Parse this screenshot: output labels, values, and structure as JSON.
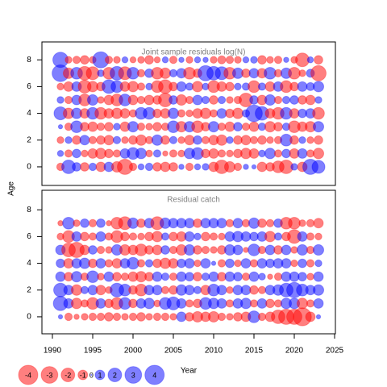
{
  "chart_data": [
    {
      "type": "bubble",
      "title": "Joint sample residuals log(N)",
      "ylabel": "Age",
      "x": [
        1991,
        1992,
        1993,
        1994,
        1995,
        1996,
        1997,
        1998,
        1999,
        2000,
        2001,
        2002,
        2003,
        2004,
        2005,
        2006,
        2007,
        2008,
        2009,
        2010,
        2011,
        2012,
        2013,
        2014,
        2015,
        2016,
        2017,
        2018,
        2019,
        2020,
        2021,
        2022,
        2023
      ],
      "ages": [
        0,
        1,
        2,
        3,
        4,
        5,
        6,
        7,
        8
      ],
      "values": [
        [
          -0.6,
          2.0,
          0.8,
          -0.8,
          0.6,
          -1.0,
          1.0,
          -1.2,
          -2.5,
          -0.6,
          0.4,
          0.6,
          -0.8,
          -1.0,
          -0.8,
          0.3,
          -0.6,
          0.4,
          0.5,
          -1.0,
          -2.0,
          -1.2,
          -0.6,
          0.3,
          0.2,
          -1.0,
          -0.8,
          -1.5,
          -2.0,
          0.5,
          -1.0,
          2.5,
          1.8
        ],
        [
          0.4,
          -0.6,
          0.8,
          -0.5,
          -1.0,
          -1.2,
          -0.8,
          -0.6,
          1.0,
          1.5,
          1.2,
          -0.5,
          0.6,
          -0.3,
          -0.6,
          -0.5,
          1.2,
          1.5,
          -0.8,
          -1.0,
          -0.6,
          -0.5,
          -0.8,
          -1.2,
          -1.0,
          0.5,
          1.2,
          -0.6,
          0.8,
          -1.0,
          1.0,
          -0.6,
          -1.2
        ],
        [
          -0.5,
          0.5,
          -0.8,
          1.0,
          -0.6,
          -0.8,
          -1.0,
          0.6,
          -0.5,
          -0.8,
          -1.2,
          -0.6,
          1.2,
          -0.8,
          0.6,
          -0.5,
          -1.0,
          0.8,
          -0.6,
          -1.0,
          -1.2,
          0.5,
          -0.8,
          -1.0,
          -0.6,
          -0.8,
          -0.5,
          -0.6,
          1.5,
          -0.8,
          0.5,
          -0.5,
          -0.8
        ],
        [
          0.2,
          -0.6,
          1.5,
          -0.8,
          -1.0,
          -0.6,
          -0.8,
          0.5,
          -1.0,
          1.2,
          -0.6,
          -0.5,
          -0.8,
          -0.6,
          1.5,
          -1.2,
          1.2,
          -1.5,
          -0.8,
          1.2,
          -0.6,
          -1.0,
          0.8,
          -0.6,
          -1.0,
          0.6,
          -1.2,
          -0.8,
          0.6,
          -1.5,
          -1.0,
          -1.2,
          1.2
        ],
        [
          1.8,
          -1.2,
          1.2,
          -1.0,
          1.5,
          -1.5,
          -1.0,
          -1.2,
          -1.0,
          -0.6,
          1.5,
          1.5,
          -0.8,
          -1.0,
          1.2,
          -0.6,
          -0.5,
          -1.0,
          -1.2,
          -0.6,
          1.0,
          -0.8,
          -1.2,
          0.6,
          3.0,
          2.0,
          -1.0,
          -1.5,
          1.5,
          -1.0,
          0.8,
          1.0,
          -1.5
        ],
        [
          0.5,
          -0.6,
          1.0,
          -1.5,
          1.2,
          -0.5,
          -1.0,
          -1.5,
          1.5,
          -1.0,
          -0.6,
          -1.0,
          -0.8,
          -2.0,
          0.8,
          -1.2,
          -0.6,
          1.0,
          0.6,
          -0.8,
          0.6,
          -0.5,
          -0.6,
          -2.0,
          0.8,
          -1.0,
          1.2,
          -0.6,
          0.6,
          0.8,
          -0.8,
          -1.0,
          0.5
        ],
        [
          -0.5,
          -1.0,
          1.0,
          -1.8,
          -1.2,
          -0.8,
          2.0,
          1.5,
          -1.0,
          -1.2,
          -0.6,
          0.5,
          -1.5,
          -2.0,
          -0.8,
          1.0,
          0.6,
          -1.2,
          0.5,
          -1.5,
          -1.0,
          -0.8,
          0.5,
          0.6,
          -1.5,
          0.6,
          -1.0,
          1.0,
          -1.5,
          -0.8,
          1.0,
          0.7,
          1.2
        ],
        [
          3.0,
          -1.2,
          1.5,
          -2.0,
          -1.8,
          0.5,
          -1.5,
          2.0,
          -1.8,
          1.5,
          -0.6,
          0.8,
          -1.5,
          -1.2,
          0.6,
          1.0,
          -1.5,
          -0.8,
          2.5,
          2.0,
          1.8,
          -1.5,
          1.2,
          -0.8,
          1.0,
          -1.0,
          1.5,
          -0.6,
          1.2,
          -1.5,
          -0.5,
          0.7,
          -2.5
        ],
        [
          2.5,
          -0.5,
          -0.6,
          -0.8,
          -0.5,
          2.8,
          -0.6,
          -0.5,
          0.4,
          -0.4,
          -0.5,
          -0.8,
          -0.4,
          0.4,
          -0.6,
          0.3,
          -0.5,
          0.4,
          0.3,
          -0.5,
          -0.7,
          -0.6,
          -0.5,
          0.4,
          0.5,
          -0.8,
          -0.5,
          -0.6,
          0.3,
          -0.5,
          -2.0,
          0.4,
          -0.8
        ]
      ],
      "xlim": [
        1988.7,
        2025.1
      ],
      "ylim": [
        -1.39,
        9.34
      ],
      "yticks": [
        0,
        2,
        4,
        6,
        8
      ]
    },
    {
      "type": "bubble",
      "title": "Residual catch",
      "xlabel": "Year",
      "x": [
        1991,
        1992,
        1993,
        1994,
        1995,
        1996,
        1997,
        1998,
        1999,
        2000,
        2001,
        2002,
        2003,
        2004,
        2005,
        2006,
        2007,
        2008,
        2009,
        2010,
        2011,
        2012,
        2013,
        2014,
        2015,
        2016,
        2017,
        2018,
        2019,
        2020,
        2021,
        2022,
        2023
      ],
      "ages": [
        0,
        1,
        2,
        3,
        4,
        5,
        6,
        7
      ],
      "values": [
        [
          0.2,
          -0.6,
          -0.3,
          -0.5,
          -0.6,
          -0.6,
          -0.8,
          -0.6,
          -0.5,
          -0.6,
          -0.8,
          -0.5,
          -0.6,
          -0.6,
          -0.5,
          1.0,
          -0.8,
          -1.2,
          -1.0,
          -1.2,
          -0.6,
          -0.5,
          -0.8,
          -1.0,
          1.5,
          -0.6,
          -1.0,
          -2.0,
          -2.5,
          -2.5,
          -3.5,
          -1.0,
          0.2
        ],
        [
          2.2,
          1.0,
          -1.2,
          -0.6,
          -1.5,
          1.0,
          -0.8,
          -1.5,
          1.5,
          -0.8,
          1.0,
          1.2,
          -0.5,
          1.5,
          1.8,
          1.0,
          -0.6,
          -0.8,
          1.5,
          1.2,
          1.0,
          -0.6,
          1.0,
          1.2,
          -0.6,
          1.0,
          -0.8,
          -0.6,
          1.2,
          1.2,
          -1.2,
          -0.6,
          1.0
        ],
        [
          2.0,
          1.0,
          -1.2,
          0.6,
          1.0,
          -1.0,
          -0.5,
          2.0,
          1.5,
          -0.8,
          -1.5,
          1.0,
          1.0,
          -0.6,
          -0.8,
          1.2,
          1.0,
          0.6,
          -1.0,
          1.5,
          1.0,
          -0.5,
          1.0,
          1.0,
          -0.8,
          -0.6,
          1.0,
          1.2,
          2.0,
          2.5,
          1.5,
          1.0,
          1.2
        ],
        [
          1.0,
          -0.8,
          1.2,
          -0.6,
          1.5,
          -0.5,
          1.0,
          -0.8,
          -0.6,
          -1.0,
          -1.2,
          -0.8,
          1.0,
          0.6,
          -0.6,
          1.0,
          0.8,
          -0.8,
          0.6,
          1.0,
          -0.8,
          1.0,
          0.8,
          -0.6,
          1.0,
          0.5,
          -0.3,
          -0.6,
          1.0,
          1.0,
          0.8,
          -0.5,
          1.0
        ],
        [
          0.8,
          -1.0,
          1.0,
          1.2,
          -0.8,
          1.0,
          -0.6,
          -1.0,
          1.0,
          1.5,
          -0.6,
          0.6,
          -0.8,
          -1.2,
          -1.0,
          0.8,
          1.0,
          -0.5,
          1.0,
          0.2,
          -0.6,
          0.8,
          -0.5,
          1.0,
          -0.6,
          1.0,
          0.8,
          1.0,
          1.0,
          -0.5,
          0.8,
          -0.6,
          0.5
        ],
        [
          1.0,
          -2.0,
          -2.5,
          -1.0,
          0.8,
          -0.6,
          -0.5,
          1.2,
          -1.2,
          -1.0,
          -1.5,
          -0.8,
          -1.0,
          0.8,
          -0.6,
          -1.2,
          1.2,
          -0.8,
          -0.6,
          -0.5,
          -0.8,
          1.2,
          1.0,
          -0.3,
          1.5,
          -0.6,
          1.0,
          -0.8,
          1.0,
          -0.5,
          1.2,
          -0.6,
          1.2
        ],
        [
          -0.5,
          -1.5,
          1.0,
          -0.8,
          -0.6,
          1.0,
          -0.6,
          -1.5,
          -0.8,
          -0.6,
          -0.5,
          -0.8,
          -1.2,
          0.6,
          -0.8,
          -1.0,
          1.0,
          0.5,
          -0.8,
          -0.6,
          -0.5,
          1.0,
          1.2,
          1.0,
          0.8,
          1.0,
          -1.2,
          0.6,
          -0.8,
          -2.0,
          1.0,
          -0.6,
          -0.5
        ],
        [
          -0.3,
          1.5,
          -0.5,
          0.8,
          -0.6,
          0.8,
          -0.3,
          -1.5,
          -1.8,
          1.2,
          -0.8,
          1.0,
          -1.8,
          1.2,
          1.0,
          1.0,
          1.0,
          -0.8,
          1.0,
          1.0,
          1.0,
          -0.6,
          1.0,
          -0.6,
          1.2,
          -0.8,
          -0.6,
          0.8,
          -1.5,
          -1.5,
          -0.5,
          -0.6,
          -1.0
        ]
      ],
      "xlim": [
        1988.7,
        2025.1
      ],
      "ylim": [
        -1.27,
        9.46
      ],
      "yticks": [
        0,
        2,
        4,
        6,
        8
      ],
      "xticks": [
        1990,
        1995,
        2000,
        2005,
        2010,
        2015,
        2020,
        2025
      ]
    }
  ],
  "size_legend": [
    -4,
    -3,
    -2,
    -1,
    0,
    1,
    2,
    3,
    4
  ],
  "colors": {
    "negative": "#ff0000",
    "positive": "#0000ff"
  },
  "opacity": 0.5
}
